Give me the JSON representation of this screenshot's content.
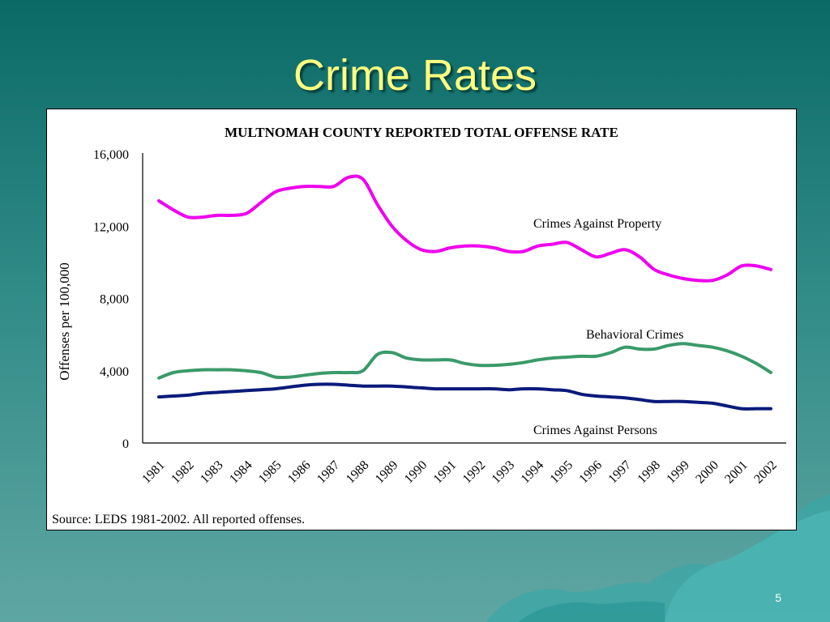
{
  "slide": {
    "title": "Crime Rates",
    "page_number": "5",
    "source": "Source: LEDS 1981-2002.  All reported offenses."
  },
  "colors": {
    "background": "#2f8a86",
    "title": "#ffff80",
    "property": "#ee00ee",
    "behavioral": "#3a9a6a",
    "persons": "#0a1a7a"
  },
  "chart_data": {
    "type": "line",
    "title": "MULTNOMAH COUNTY REPORTED TOTAL OFFENSE RATE",
    "xlabel": "",
    "ylabel": "Offenses per 100,000",
    "ylim": [
      0,
      16000
    ],
    "y_ticks": [
      "0",
      "4,000",
      "8,000",
      "12,000",
      "16,000"
    ],
    "y_tick_values": [
      0,
      4000,
      8000,
      12000,
      16000
    ],
    "xlim": [
      1981,
      2002
    ],
    "categories": [
      "1981",
      "1982",
      "1983",
      "1984",
      "1985",
      "1986",
      "1987",
      "1988",
      "1989",
      "1990",
      "1991",
      "1992",
      "1993",
      "1994",
      "1995",
      "1996",
      "1997",
      "1998",
      "1999",
      "2000",
      "2001",
      "2002"
    ],
    "grid": false,
    "series": [
      {
        "name": "Crimes Against Property",
        "color": "#ee00ee",
        "points": [
          [
            1981,
            13400
          ],
          [
            1981.5,
            12900
          ],
          [
            1982,
            12500
          ],
          [
            1982.5,
            12500
          ],
          [
            1983,
            12600
          ],
          [
            1983.5,
            12600
          ],
          [
            1984,
            12700
          ],
          [
            1984.5,
            13300
          ],
          [
            1985,
            13900
          ],
          [
            1985.5,
            14100
          ],
          [
            1986,
            14200
          ],
          [
            1986.5,
            14200
          ],
          [
            1987,
            14200
          ],
          [
            1987.5,
            14700
          ],
          [
            1988,
            14600
          ],
          [
            1988.5,
            13200
          ],
          [
            1989,
            12000
          ],
          [
            1989.5,
            11200
          ],
          [
            1990,
            10700
          ],
          [
            1990.5,
            10600
          ],
          [
            1991,
            10800
          ],
          [
            1991.5,
            10900
          ],
          [
            1992,
            10900
          ],
          [
            1992.5,
            10800
          ],
          [
            1993,
            10600
          ],
          [
            1993.5,
            10600
          ],
          [
            1994,
            10900
          ],
          [
            1994.5,
            11000
          ],
          [
            1995,
            11100
          ],
          [
            1995.5,
            10700
          ],
          [
            1996,
            10300
          ],
          [
            1996.5,
            10500
          ],
          [
            1997,
            10700
          ],
          [
            1997.5,
            10300
          ],
          [
            1998,
            9600
          ],
          [
            1998.5,
            9300
          ],
          [
            1999,
            9100
          ],
          [
            1999.5,
            9000
          ],
          [
            2000,
            9000
          ],
          [
            2000.5,
            9300
          ],
          [
            2001,
            9800
          ],
          [
            2001.5,
            9800
          ],
          [
            2002,
            9600
          ]
        ]
      },
      {
        "name": "Behavioral Crimes",
        "color": "#3a9a6a",
        "points": [
          [
            1981,
            3600
          ],
          [
            1981.5,
            3900
          ],
          [
            1982,
            4000
          ],
          [
            1982.5,
            4050
          ],
          [
            1983,
            4050
          ],
          [
            1983.5,
            4050
          ],
          [
            1984,
            4000
          ],
          [
            1984.5,
            3900
          ],
          [
            1985,
            3650
          ],
          [
            1985.5,
            3650
          ],
          [
            1986,
            3750
          ],
          [
            1986.5,
            3850
          ],
          [
            1987,
            3900
          ],
          [
            1987.5,
            3900
          ],
          [
            1988,
            4000
          ],
          [
            1988.5,
            4900
          ],
          [
            1989,
            5000
          ],
          [
            1989.5,
            4700
          ],
          [
            1990,
            4600
          ],
          [
            1990.5,
            4600
          ],
          [
            1991,
            4600
          ],
          [
            1991.5,
            4400
          ],
          [
            1992,
            4300
          ],
          [
            1992.5,
            4300
          ],
          [
            1993,
            4350
          ],
          [
            1993.5,
            4450
          ],
          [
            1994,
            4600
          ],
          [
            1994.5,
            4700
          ],
          [
            1995,
            4750
          ],
          [
            1995.5,
            4800
          ],
          [
            1996,
            4800
          ],
          [
            1996.5,
            5000
          ],
          [
            1997,
            5300
          ],
          [
            1997.5,
            5200
          ],
          [
            1998,
            5200
          ],
          [
            1998.5,
            5400
          ],
          [
            1999,
            5500
          ],
          [
            1999.5,
            5400
          ],
          [
            2000,
            5300
          ],
          [
            2000.5,
            5100
          ],
          [
            2001,
            4800
          ],
          [
            2001.5,
            4400
          ],
          [
            2002,
            3900
          ]
        ]
      },
      {
        "name": "Crimes Against Persons",
        "color": "#0a1a7a",
        "points": [
          [
            1981,
            2550
          ],
          [
            1981.5,
            2600
          ],
          [
            1982,
            2650
          ],
          [
            1982.5,
            2750
          ],
          [
            1983,
            2800
          ],
          [
            1983.5,
            2850
          ],
          [
            1984,
            2900
          ],
          [
            1984.5,
            2950
          ],
          [
            1985,
            3000
          ],
          [
            1985.5,
            3100
          ],
          [
            1986,
            3200
          ],
          [
            1986.5,
            3250
          ],
          [
            1987,
            3250
          ],
          [
            1987.5,
            3200
          ],
          [
            1988,
            3150
          ],
          [
            1988.5,
            3150
          ],
          [
            1989,
            3150
          ],
          [
            1989.5,
            3100
          ],
          [
            1990,
            3050
          ],
          [
            1990.5,
            3000
          ],
          [
            1991,
            3000
          ],
          [
            1991.5,
            3000
          ],
          [
            1992,
            3000
          ],
          [
            1992.5,
            3000
          ],
          [
            1993,
            2950
          ],
          [
            1993.5,
            3000
          ],
          [
            1994,
            3000
          ],
          [
            1994.5,
            2950
          ],
          [
            1995,
            2900
          ],
          [
            1995.5,
            2700
          ],
          [
            1996,
            2600
          ],
          [
            1996.5,
            2550
          ],
          [
            1997,
            2500
          ],
          [
            1997.5,
            2400
          ],
          [
            1998,
            2300
          ],
          [
            1998.5,
            2300
          ],
          [
            1999,
            2300
          ],
          [
            1999.5,
            2250
          ],
          [
            2000,
            2200
          ],
          [
            2000.5,
            2050
          ],
          [
            2001,
            1900
          ],
          [
            2001.5,
            1900
          ],
          [
            2002,
            1900
          ]
        ]
      }
    ],
    "annotations": [
      "Crimes Against Property",
      "Behavioral Crimes",
      "Crimes Against Persons"
    ]
  }
}
